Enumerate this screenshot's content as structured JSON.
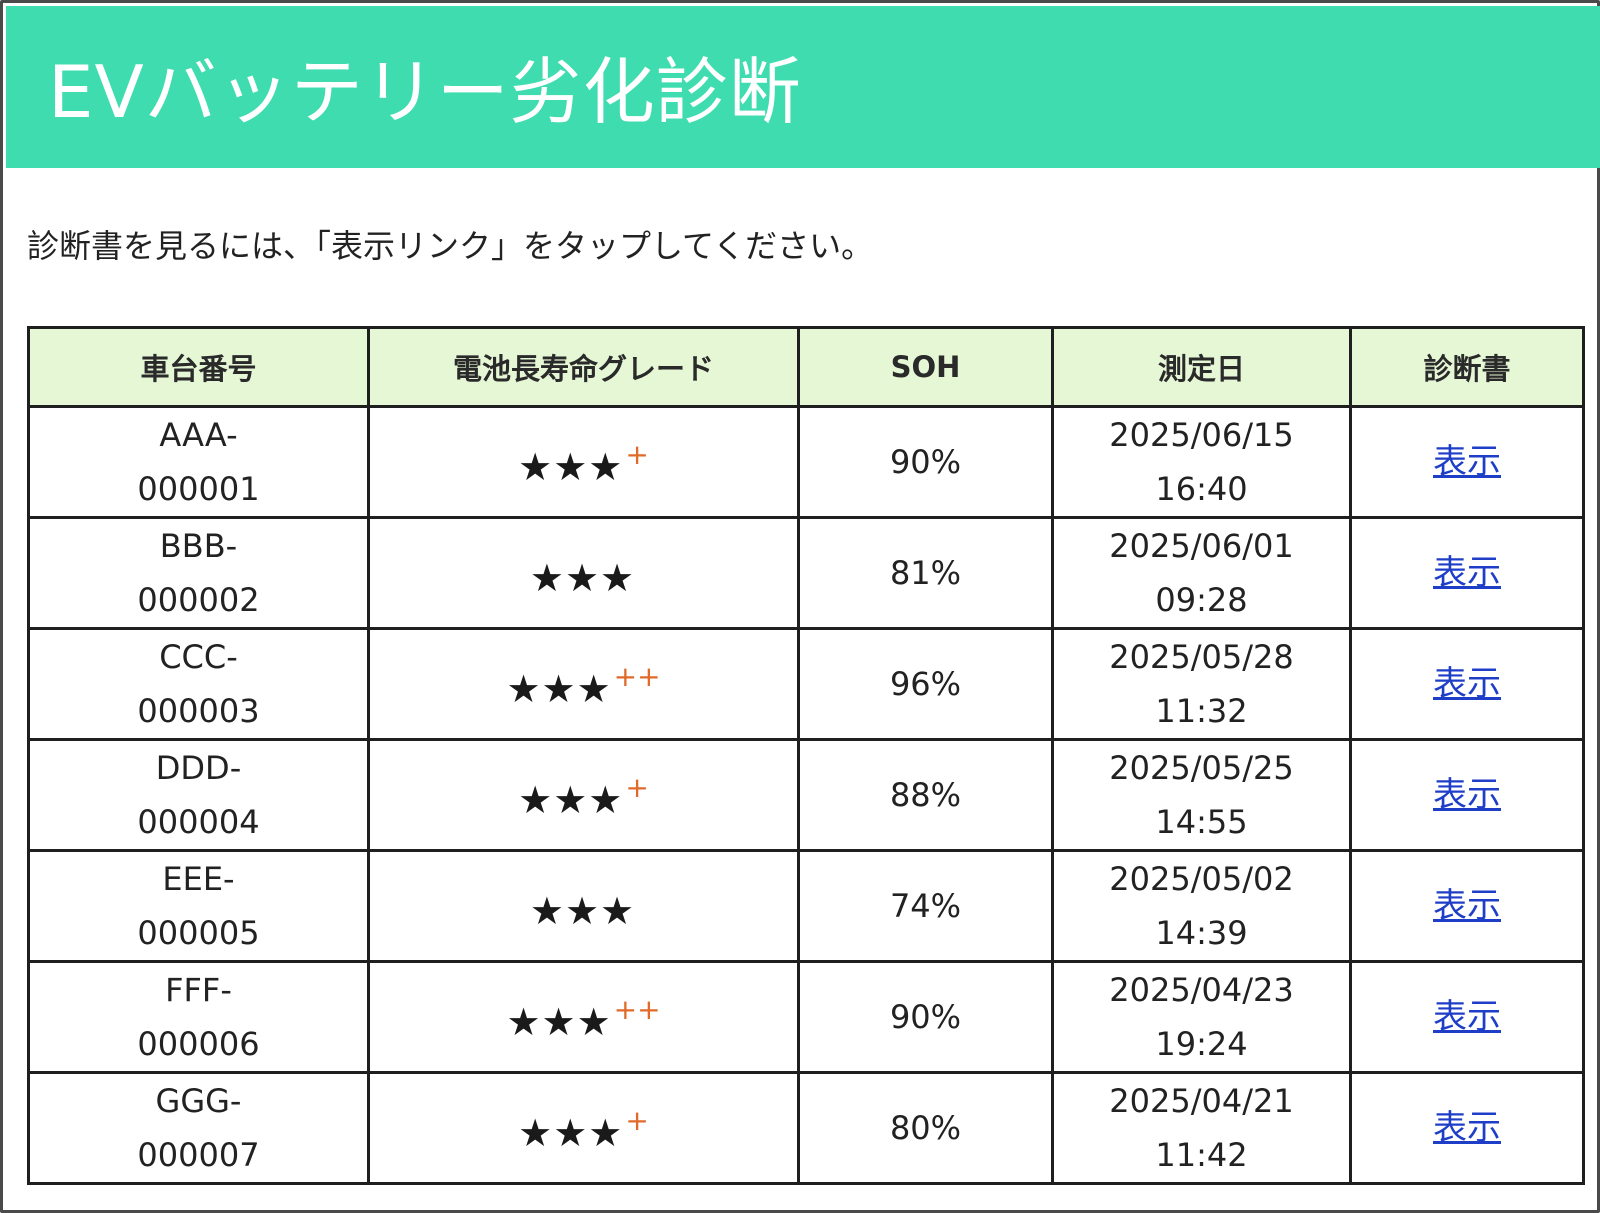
{
  "header": {
    "title": "EVバッテリー劣化診断",
    "background_color": "#3fdcb0"
  },
  "instruction": "診断書を見るには、「表示リンク」をタップしてください。",
  "table": {
    "columns": [
      "車台番号",
      "電池長寿命グレード",
      "SOH",
      "測定日",
      "診断書"
    ],
    "header_background": "#e6f7d6",
    "rows": [
      {
        "id_prefix": "AAA-",
        "id_number": "000001",
        "stars": "★★★",
        "plus": "+",
        "soh": "90%",
        "date": "2025/06/15",
        "time": "16:40",
        "link": "表示"
      },
      {
        "id_prefix": "BBB-",
        "id_number": "000002",
        "stars": "★★★",
        "plus": "",
        "soh": "81%",
        "date": "2025/06/01",
        "time": "09:28",
        "link": "表示"
      },
      {
        "id_prefix": "CCC-",
        "id_number": "000003",
        "stars": "★★★",
        "plus": "++",
        "soh": "96%",
        "date": "2025/05/28",
        "time": "11:32",
        "link": "表示"
      },
      {
        "id_prefix": "DDD-",
        "id_number": "000004",
        "stars": "★★★",
        "plus": "+",
        "soh": "88%",
        "date": "2025/05/25",
        "time": "14:55",
        "link": "表示"
      },
      {
        "id_prefix": "EEE-",
        "id_number": "000005",
        "stars": "★★★",
        "plus": "",
        "soh": "74%",
        "date": "2025/05/02",
        "time": "14:39",
        "link": "表示"
      },
      {
        "id_prefix": "FFF-",
        "id_number": "000006",
        "stars": "★★★",
        "plus": "++",
        "soh": "90%",
        "date": "2025/04/23",
        "time": "19:24",
        "link": "表示"
      },
      {
        "id_prefix": "GGG-",
        "id_number": "000007",
        "stars": "★★★",
        "plus": "+",
        "soh": "80%",
        "date": "2025/04/21",
        "time": "11:42",
        "link": "表示"
      }
    ],
    "plus_color": "#e06a2a",
    "link_color": "#1f3ec8"
  }
}
